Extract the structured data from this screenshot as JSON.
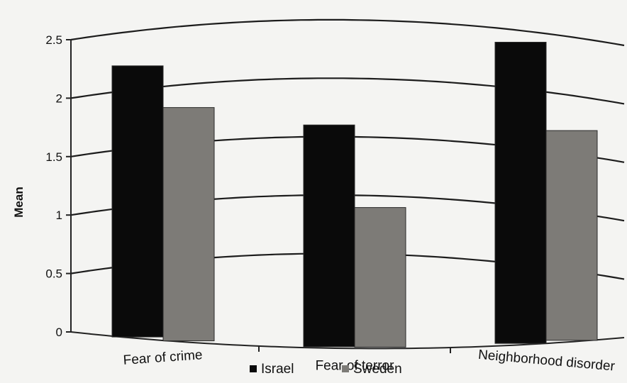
{
  "chart_data": {
    "type": "bar",
    "categories": [
      "Fear of crime",
      "Fear of terror",
      "Neighborhood disorder"
    ],
    "series": [
      {
        "name": "Israel",
        "values": [
          2.2,
          1.6,
          2.4
        ],
        "color": "#0a0a0a"
      },
      {
        "name": "Sweden",
        "values": [
          1.8,
          0.9,
          1.7
        ],
        "color": "#7d7b77"
      }
    ],
    "ylabel": "Mean",
    "ylim": [
      0,
      2.5
    ],
    "yticks": [
      "0",
      "0.5",
      "1",
      "1.5",
      "2",
      "2.5"
    ],
    "grid": true,
    "legend_position": "bottom"
  }
}
